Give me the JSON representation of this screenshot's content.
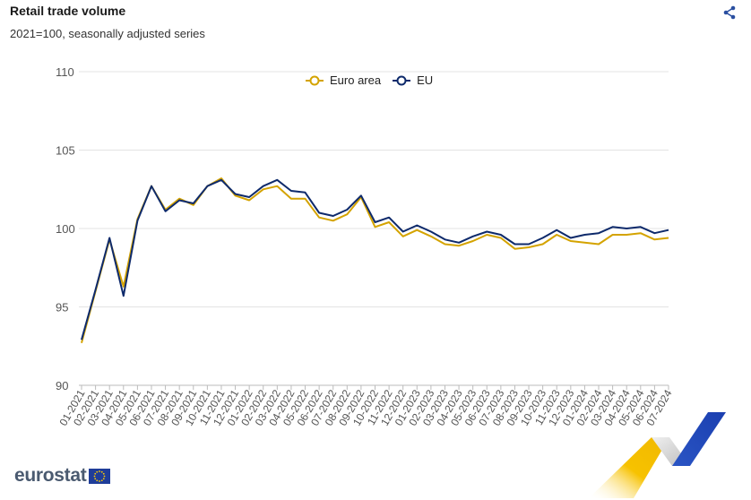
{
  "header": {
    "title": "Retail trade volume",
    "subtitle": "2021=100, seasonally adjusted series",
    "share_icon": "share-icon"
  },
  "branding": {
    "logo_text": "eurostat",
    "flag_icon": "eu-flag-icon"
  },
  "colors": {
    "euro_area": "#d4a300",
    "eu": "#0e2a6b",
    "grid": "#e3e3e3",
    "axis_text": "#555555"
  },
  "chart_data": {
    "type": "line",
    "title": "Retail trade volume",
    "subtitle": "2021=100, seasonally adjusted series",
    "xlabel": "",
    "ylabel": "",
    "ylim": [
      90,
      110
    ],
    "yticks": [
      90,
      95,
      100,
      105,
      110
    ],
    "grid": true,
    "legend_position": "top-center",
    "categories": [
      "01-2021",
      "02-2021",
      "03-2021",
      "04-2021",
      "05-2021",
      "06-2021",
      "07-2021",
      "08-2021",
      "09-2021",
      "10-2021",
      "11-2021",
      "12-2021",
      "01-2022",
      "02-2022",
      "03-2022",
      "04-2022",
      "05-2022",
      "06-2022",
      "07-2022",
      "08-2022",
      "09-2022",
      "10-2022",
      "11-2022",
      "12-2022",
      "01-2023",
      "02-2023",
      "03-2023",
      "04-2023",
      "05-2023",
      "06-2023",
      "07-2023",
      "08-2023",
      "09-2023",
      "10-2023",
      "11-2023",
      "12-2023",
      "01-2024",
      "02-2024",
      "03-2024",
      "04-2024",
      "05-2024",
      "06-2024",
      "07-2024"
    ],
    "series": [
      {
        "name": "Euro area",
        "color": "#d4a300",
        "values": [
          92.7,
          96.0,
          99.3,
          96.3,
          100.6,
          102.7,
          101.2,
          101.9,
          101.5,
          102.7,
          103.2,
          102.1,
          101.8,
          102.5,
          102.7,
          101.9,
          101.9,
          100.7,
          100.5,
          100.9,
          102.0,
          100.1,
          100.4,
          99.5,
          99.9,
          99.5,
          99.0,
          98.9,
          99.2,
          99.6,
          99.4,
          98.7,
          98.8,
          99.0,
          99.6,
          99.2,
          99.1,
          99.0,
          99.6,
          99.6,
          99.7,
          99.3,
          99.4
        ]
      },
      {
        "name": "EU",
        "color": "#0e2a6b",
        "values": [
          92.9,
          96.1,
          99.4,
          95.7,
          100.5,
          102.7,
          101.1,
          101.8,
          101.6,
          102.7,
          103.1,
          102.2,
          102.0,
          102.7,
          103.1,
          102.4,
          102.3,
          101.0,
          100.8,
          101.2,
          102.1,
          100.4,
          100.7,
          99.8,
          100.2,
          99.8,
          99.3,
          99.1,
          99.5,
          99.8,
          99.6,
          99.0,
          99.0,
          99.4,
          99.9,
          99.4,
          99.6,
          99.7,
          100.1,
          100.0,
          100.1,
          99.7,
          99.9
        ]
      }
    ]
  }
}
